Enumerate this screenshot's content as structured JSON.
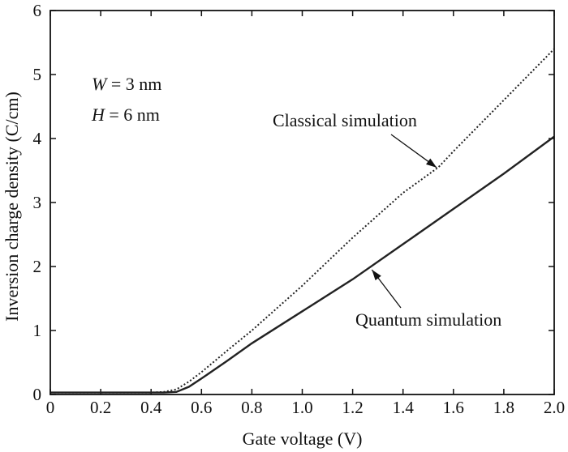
{
  "chart_data": {
    "type": "line",
    "xlabel": "Gate voltage (V)",
    "ylabel": "Inversion charge density (C/cm)",
    "xlim": [
      0,
      2.0
    ],
    "ylim": [
      0,
      6
    ],
    "x_ticks": [
      "0",
      "0.2",
      "0.4",
      "0.6",
      "0.8",
      "1.0",
      "1.2",
      "1.4",
      "1.6",
      "1.8",
      "2.0"
    ],
    "x_tick_values": [
      0,
      0.2,
      0.4,
      0.6,
      0.8,
      1.0,
      1.2,
      1.4,
      1.6,
      1.8,
      2.0
    ],
    "y_ticks": [
      "0",
      "1",
      "2",
      "3",
      "4",
      "5",
      "6"
    ],
    "y_tick_values": [
      0,
      1,
      2,
      3,
      4,
      5,
      6
    ],
    "grid": false,
    "params": {
      "w_label": "W",
      "w_value": " = 3 nm",
      "h_label": "H",
      "h_value": " = 6 nm"
    },
    "series": [
      {
        "name": "Classical simulation",
        "style": "dotted",
        "x": [
          0,
          0.4,
          0.45,
          0.5,
          0.55,
          0.6,
          0.7,
          0.8,
          1.0,
          1.2,
          1.4,
          1.54,
          1.6,
          1.8,
          2.0
        ],
        "y": [
          0.03,
          0.03,
          0.04,
          0.08,
          0.2,
          0.35,
          0.68,
          1.0,
          1.7,
          2.45,
          3.15,
          3.55,
          3.8,
          4.6,
          5.4
        ],
        "annotation_point": [
          1.54,
          3.52
        ],
        "label_anchor": [
          1.42,
          4.35
        ]
      },
      {
        "name": "Quantum simulation",
        "style": "solid",
        "x": [
          0,
          0.45,
          0.5,
          0.55,
          0.6,
          0.7,
          0.8,
          1.0,
          1.2,
          1.4,
          1.6,
          1.8,
          2.0
        ],
        "y": [
          0.03,
          0.03,
          0.04,
          0.12,
          0.25,
          0.52,
          0.8,
          1.3,
          1.8,
          2.35,
          2.9,
          3.45,
          4.03
        ],
        "annotation_point": [
          1.27,
          2.0
        ],
        "label_anchor": [
          1.22,
          1.13
        ]
      }
    ],
    "colors": {
      "line": "#222222",
      "axis": "#111111",
      "background": "#ffffff"
    }
  }
}
